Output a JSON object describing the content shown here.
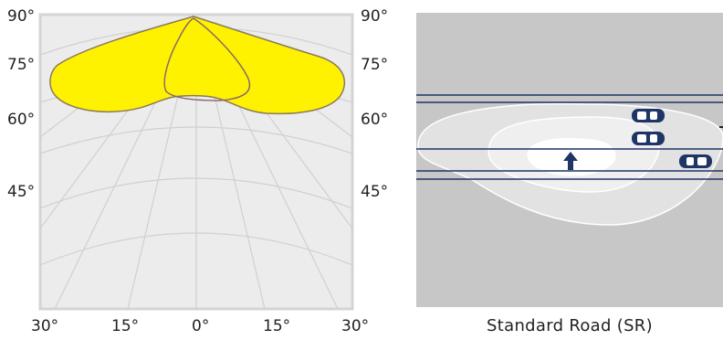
{
  "polar_diagram": {
    "angle_labels_left": [
      "90°",
      "75°",
      "60°",
      "45°"
    ],
    "angle_labels_right": [
      "90°",
      "75°",
      "60°",
      "45°"
    ],
    "bottom_labels": [
      "30°",
      "15°",
      "0°",
      "15°",
      "30°"
    ],
    "colors": {
      "background": "#ececec",
      "grid": "#c9c9c9",
      "border": "#d4d4d4",
      "distribution_fill": "#fff200",
      "distribution_stroke": "#8a7a5a",
      "secondary_curve": "#8a6a6a"
    }
  },
  "road_diagram": {
    "caption": "Standard Road (SR)",
    "icons": [
      "car-icon",
      "car-icon",
      "car-icon",
      "direction-arrow-icon"
    ],
    "colors": {
      "background": "#c7c7c7",
      "lane_lines": "#1f3566",
      "iso_outer": "#e2e2e2",
      "iso_middle": "#efefef",
      "iso_inner": "#ffffff",
      "car": "#1f3566"
    }
  }
}
